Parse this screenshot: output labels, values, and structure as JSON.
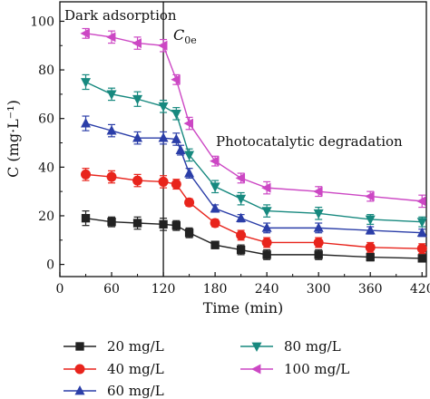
{
  "chart_data": {
    "type": "line",
    "xlabel": "Time (min)",
    "ylabel": "C (mg·L⁻¹)",
    "xlim": [
      0,
      425
    ],
    "ylim": [
      -5,
      108
    ],
    "xticks": [
      0,
      60,
      120,
      180,
      240,
      300,
      360,
      420
    ],
    "yticks": [
      0,
      20,
      40,
      60,
      80,
      100
    ],
    "grid": false,
    "legend_position": "bottom",
    "divider_x": 120,
    "annotations": {
      "dark": "Dark adsorption",
      "c0e": "C0e",
      "photo": "Photocatalytic degradation"
    },
    "series": [
      {
        "name": "20 mg/L",
        "color": "#222222",
        "marker": "square",
        "x": [
          30,
          60,
          90,
          120,
          135,
          150,
          180,
          210,
          240,
          300,
          360,
          420
        ],
        "y": [
          19,
          17.5,
          17,
          16.5,
          16,
          13,
          8,
          6,
          4,
          4,
          3,
          2.5
        ],
        "err": [
          3,
          2,
          2.5,
          2.5,
          2,
          2,
          1.5,
          2,
          2,
          2,
          1.5,
          1.5
        ]
      },
      {
        "name": "40 mg/L",
        "color": "#e8241c",
        "marker": "circle",
        "x": [
          30,
          60,
          90,
          120,
          135,
          150,
          180,
          210,
          240,
          300,
          360,
          420
        ],
        "y": [
          37,
          36,
          34.5,
          34,
          33,
          25.5,
          17,
          12,
          9,
          9,
          7,
          6.5
        ],
        "err": [
          2.5,
          2.5,
          2.5,
          2.5,
          2,
          1.5,
          1.5,
          2,
          2,
          2,
          2,
          2
        ]
      },
      {
        "name": "60 mg/L",
        "color": "#2b3ea8",
        "marker": "triangle-up",
        "x": [
          30,
          60,
          90,
          120,
          135,
          140,
          150,
          180,
          210,
          240,
          300,
          360,
          420
        ],
        "y": [
          58,
          55,
          52,
          52,
          51.5,
          47,
          37.5,
          23,
          19,
          15,
          15,
          14,
          13
        ],
        "err": [
          3,
          2.5,
          2.5,
          2.5,
          2.5,
          2,
          2,
          1.5,
          1.5,
          2,
          2,
          1.5,
          1.5
        ]
      },
      {
        "name": "80 mg/L",
        "color": "#17897f",
        "marker": "triangle-down",
        "x": [
          30,
          60,
          90,
          120,
          135,
          150,
          180,
          210,
          240,
          300,
          360,
          420
        ],
        "y": [
          75,
          70,
          68,
          65,
          62,
          45,
          32,
          27,
          22,
          21,
          18.5,
          17.5
        ],
        "err": [
          3,
          2.5,
          3,
          2.5,
          2.5,
          2.5,
          2.5,
          2.5,
          2.5,
          2.5,
          2,
          2
        ]
      },
      {
        "name": "100 mg/L",
        "color": "#cc47c4",
        "marker": "triangle-left",
        "x": [
          30,
          60,
          90,
          120,
          135,
          150,
          180,
          210,
          240,
          300,
          360,
          420
        ],
        "y": [
          95,
          93.5,
          91,
          90,
          76,
          58,
          42.5,
          35.5,
          31.5,
          30,
          28,
          26
        ],
        "err": [
          2,
          2.5,
          2.5,
          2.5,
          2,
          2.5,
          2,
          2,
          2.5,
          2,
          2,
          2.5
        ]
      }
    ]
  }
}
